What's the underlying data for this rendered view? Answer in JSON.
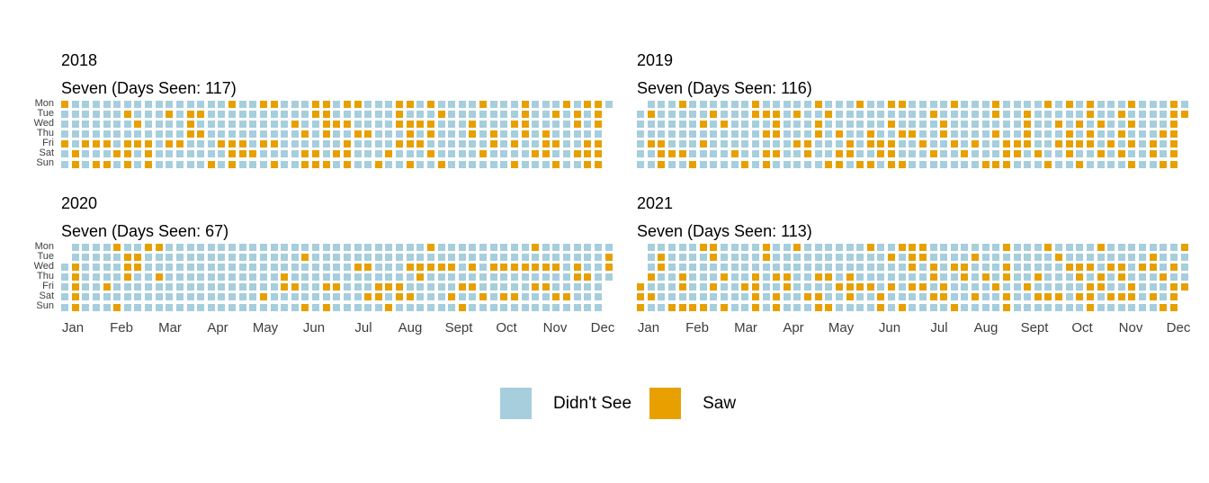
{
  "chart_data": {
    "type": "heatmap",
    "subtype": "calendar-heatmap",
    "description": "Daily sightings of Seven, one panel per year; rows are weekdays, columns are weeks of the year",
    "encoding": "per weekday row, 53 week columns: 1 = Saw, 0 = Didn't See, . = date not in that year",
    "colors": {
      "didnt_see": "#A6CEDC",
      "saw": "#E7A000"
    },
    "day_rows": [
      "Mon",
      "Tue",
      "Wed",
      "Thu",
      "Fri",
      "Sat",
      "Sun"
    ],
    "month_labels": [
      "Jan",
      "Feb",
      "Mar",
      "Apr",
      "May",
      "Jun",
      "Jul",
      "Aug",
      "Sept",
      "Oct",
      "Nov",
      "Dec"
    ],
    "legend": [
      {
        "label": "Didn't See",
        "color": "#A6CEDC"
      },
      {
        "label": "Saw",
        "color": "#E7A000"
      }
    ],
    "years": [
      {
        "year": "2018",
        "title": "Seven (Days Seen: 117)",
        "days_seen": 117,
        "rows": {
          "Mon": "10000000000000001001100011011000110100001000100010110",
          "Tue": "0000001000101100000000001100000010001000000010010101.",
          "Wed": "0000000100001000000000100111000011110001000110000101.",
          "Thu": "0000000000001100000000010100110001010001010010100000.",
          "Fri": "1011101110110001110110000001000011100000010100110011.",
          "Sat": "0100011010000000111000011011000100010000100001100111.",
          "Sun": "0101101010000010100010011101001001001000000100010011."
        }
      },
      {
        "year": "2019",
        "title": "Seven (Days Seen: 116)",
        "days_seen": 116,
        "rows": {
          "Mon": ".0001000000100000100010011000010001000010101000100010",
          "Tue": "01000001000111010010000000001000001001000001001000011",
          "Wed": "0000001010000100010000001000010000000100101010010001.",
          "Thu": "0000000000001100010100100110010000100100010100100011.",
          "Fri": "0110001000000001100010111001001010011100111101010101.",
          "Sat": "0011100001001100100110011000100100011010010010100101.",
          "Sun": "0010010000101000001101101100000001110001001000010011."
        }
      },
      {
        "year": "2020",
        "title": "Seven (Days Seen: 67)",
        "days_seen": 67,
        "rows": {
          "Mon": ".0000100110000000000000000000000000100000000010000000",
          "Tue": ".0000011000000000000000100000000000000000000000000001",
          "Wed": "01000011000000000000000000001100011111010111111101001",
          "Thu": "01000010010000000000010000000000001000000000000001100",
          "Fri": "0100100000000000000001100110001110000011000001100000.",
          "Sat": "0100000000000000000100000000011011000100101100011000.",
          "Sun": "0100010000000000000000010100000100000010000000000000."
        }
      },
      {
        "year": "2021",
        "title": "Seven (Days Seen: 113)",
        "days_seen": 113,
        "rows": {
          "Mon": ".0000011000010010000001001110000000100010000100000001",
          "Tue": ".0100001000010000000000010110000100000001000000001000",
          "Wed": ".0100000000000000000000000101011000100000111011011010",
          "Thu": ".1001000100101100110100000001001010100100010101000100",
          "Fri": "10001001001100100001111010110100001001000001100100011",
          "Sat": "1100000000010100110010010000110010010011101101110101.",
          "Sun": "1001111010010100011000010100001000010000000100000011."
        }
      }
    ],
    "layout": {
      "panels": "2x2 grid: 2018 top-left, 2019 top-right, 2020 bottom-left, 2021 bottom-right",
      "weekday_axis": "left side of left-column panels only",
      "month_axis": "below bottom-row panels only",
      "legend_position": "bottom center"
    }
  }
}
